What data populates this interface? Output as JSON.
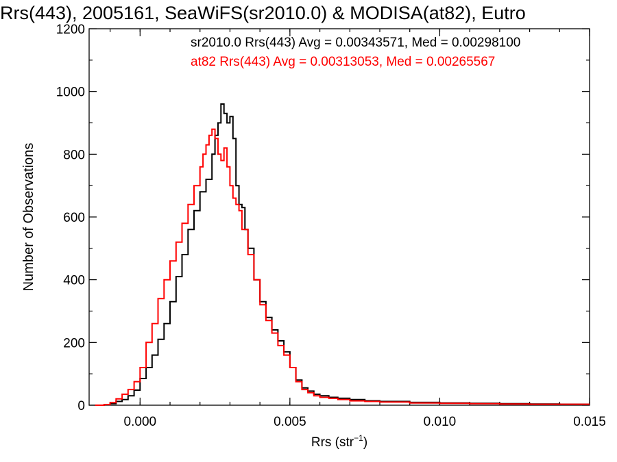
{
  "chart_data": {
    "type": "line",
    "title": "Rrs(443), 2005161, SeaWiFS(sr2010.0) & MODISA(at82), Eutro",
    "xlabel": "Rrs (str",
    "xlabel_sup": "−1",
    "xlabel_close": ")",
    "ylabel": "Number of Observations",
    "xlim": [
      -0.0017,
      0.015
    ],
    "ylim": [
      0,
      1200
    ],
    "x_ticks": [
      0.0,
      0.005,
      0.01,
      0.015
    ],
    "x_tick_labels": [
      "0.000",
      "0.005",
      "0.010",
      "0.015"
    ],
    "y_ticks": [
      0,
      200,
      400,
      600,
      800,
      1000,
      1200
    ],
    "y_tick_labels": [
      "0",
      "200",
      "400",
      "600",
      "800",
      "1000",
      "1200"
    ],
    "grid": false,
    "step": true,
    "series": [
      {
        "name": "sr2010.0",
        "color": "#000000",
        "legend": "sr2010.0 Rrs(443) Avg = 0.00343571, Med = 0.00298100",
        "x": [
          -0.0015,
          -0.0012,
          -0.001,
          -0.0008,
          -0.0006,
          -0.0004,
          -0.0002,
          0.0,
          0.0002,
          0.0004,
          0.0006,
          0.0008,
          0.001,
          0.0012,
          0.0014,
          0.0016,
          0.0018,
          0.002,
          0.0022,
          0.0024,
          0.0025,
          0.0026,
          0.0027,
          0.0028,
          0.0029,
          0.003,
          0.0031,
          0.0032,
          0.0033,
          0.0034,
          0.0035,
          0.0036,
          0.0038,
          0.004,
          0.0042,
          0.0044,
          0.0046,
          0.0048,
          0.005,
          0.0052,
          0.0054,
          0.0056,
          0.0058,
          0.006,
          0.0063,
          0.0066,
          0.007,
          0.0075,
          0.008,
          0.009,
          0.01,
          0.011,
          0.012,
          0.013,
          0.014,
          0.015
        ],
        "y": [
          0,
          2,
          5,
          12,
          18,
          30,
          48,
          85,
          120,
          160,
          210,
          260,
          330,
          410,
          480,
          560,
          620,
          680,
          720,
          800,
          860,
          900,
          960,
          930,
          900,
          920,
          850,
          700,
          640,
          630,
          560,
          500,
          400,
          330,
          280,
          240,
          205,
          170,
          120,
          80,
          55,
          45,
          35,
          30,
          25,
          22,
          18,
          14,
          12,
          9,
          7,
          6,
          5,
          4,
          3,
          3
        ]
      },
      {
        "name": "at82",
        "color": "#ff0000",
        "legend": "at82 Rrs(443) Avg = 0.00313053, Med = 0.00265567",
        "x": [
          -0.0015,
          -0.0012,
          -0.001,
          -0.0008,
          -0.0006,
          -0.0004,
          -0.0002,
          0.0,
          0.0002,
          0.0004,
          0.0006,
          0.0008,
          0.001,
          0.0012,
          0.0014,
          0.0016,
          0.0018,
          0.002,
          0.0021,
          0.0022,
          0.0023,
          0.0024,
          0.0025,
          0.0026,
          0.0027,
          0.0028,
          0.0029,
          0.003,
          0.0031,
          0.0032,
          0.0033,
          0.0034,
          0.0036,
          0.0038,
          0.004,
          0.0042,
          0.0044,
          0.0046,
          0.0048,
          0.005,
          0.0052,
          0.0054,
          0.0056,
          0.0058,
          0.006,
          0.0063,
          0.0066,
          0.007,
          0.0075,
          0.008,
          0.009,
          0.01,
          0.011,
          0.012,
          0.013,
          0.014,
          0.015
        ],
        "y": [
          0,
          2,
          8,
          20,
          35,
          50,
          75,
          120,
          200,
          260,
          340,
          400,
          460,
          520,
          580,
          640,
          700,
          760,
          800,
          830,
          860,
          880,
          850,
          800,
          780,
          820,
          760,
          700,
          660,
          640,
          620,
          560,
          480,
          400,
          320,
          270,
          230,
          190,
          160,
          120,
          75,
          50,
          40,
          30,
          25,
          22,
          18,
          14,
          12,
          10,
          7,
          6,
          5,
          4,
          3,
          3,
          3
        ]
      }
    ]
  }
}
